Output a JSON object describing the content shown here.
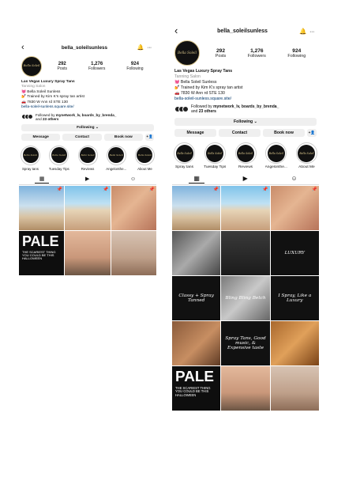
{
  "profile": {
    "username": "bella_soleilsunless",
    "stats": [
      {
        "value": "292",
        "label": "Posts"
      },
      {
        "value": "1,276",
        "label": "Followers"
      },
      {
        "value": "924",
        "label": "Following"
      }
    ],
    "name": "Las Vegas Luxury Spray Tans",
    "category": "Tanning Salon",
    "bio_lines": [
      "💓 Bella Soleil Sunless",
      "💅 Trained by Kim K's spray tan artist",
      "🚗 7830 W Ann rd STE 130"
    ],
    "link": "bella-soleil-sunless.square.site/",
    "followed_by_prefix": "Followed by ",
    "followed_by_names": "mynetwork_lv, boards_by_brenda_",
    "followed_by_mid": " and ",
    "followed_by_others": "23 others",
    "avatar_logo_text": "Bella Soleil"
  },
  "buttons": {
    "following": "Following ⌄",
    "message": "Message",
    "contact": "Contact",
    "book_now": "Book now",
    "add_person": "+👤"
  },
  "highlights": [
    "Spray tans",
    "Tuesday Tips",
    "Reviews",
    "Angelonthe...",
    "About Me"
  ],
  "highlight_logo": "Bella Soleil",
  "icons": {
    "back": "back-chevron-icon",
    "bell": "bell-icon",
    "more": "more-options-icon",
    "grid": "grid-icon",
    "reels": "reels-icon",
    "tagged": "tagged-icon"
  },
  "tiles_left": [
    {
      "style": "sun",
      "text": "",
      "pin": "📌"
    },
    {
      "style": "beach",
      "text": "",
      "pin": "📌"
    },
    {
      "style": "skin",
      "text": "",
      "pin": "📌"
    },
    {
      "style": "pale",
      "text": "PALE",
      "sub": "THE SCARIEST THING YOU COULD BE THIS HALLOWEEN",
      "pin": ""
    },
    {
      "style": "torso",
      "text": "",
      "pin": ""
    },
    {
      "style": "model",
      "text": "",
      "pin": ""
    }
  ],
  "tiles_right": [
    {
      "style": "sun",
      "text": "",
      "pin": "📌"
    },
    {
      "style": "beach",
      "text": "",
      "pin": "📌"
    },
    {
      "style": "skin",
      "text": "",
      "pin": "📌"
    },
    {
      "style": "bw",
      "text": "",
      "pin": ""
    },
    {
      "style": "dark",
      "text": "",
      "pin": ""
    },
    {
      "style": "blk",
      "text": "LUXURY",
      "pin": ""
    },
    {
      "style": "blk",
      "text": "Classy + Spray Tanned",
      "pin": ""
    },
    {
      "style": "bling",
      "text": "Bling Bling Betch",
      "pin": ""
    },
    {
      "style": "blk",
      "text": "I Spray, Like a Luxury",
      "pin": ""
    },
    {
      "style": "tan",
      "text": "",
      "pin": ""
    },
    {
      "style": "blk",
      "text": "Spray Tans, Good music, & Expensive taste",
      "pin": ""
    },
    {
      "style": "gold",
      "text": "",
      "pin": ""
    },
    {
      "style": "pale",
      "text": "PALE",
      "sub": "THE SCARIEST THING YOU COULD BE THIS HALLOWEEN",
      "pin": ""
    },
    {
      "style": "torso",
      "text": "",
      "pin": ""
    },
    {
      "style": "model",
      "text": "",
      "pin": ""
    }
  ],
  "colors": {
    "link": "#00376b",
    "button_bg": "#efefef",
    "gold_logo": "#d8c58b"
  }
}
